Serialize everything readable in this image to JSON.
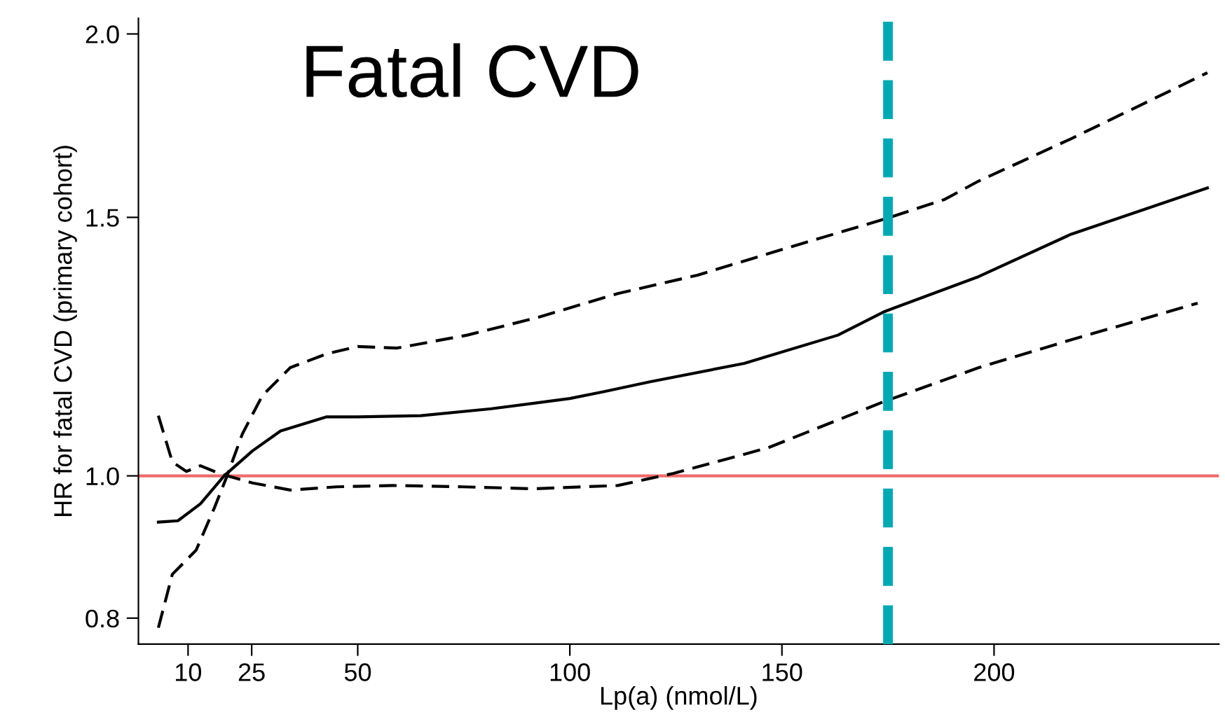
{
  "chart_data": {
    "type": "line",
    "title": "Fatal CVD",
    "xlabel": "Lp(a) (nmol/L)",
    "ylabel": "HR for fatal CVD (primary cohort)",
    "log": "y",
    "xlim": [
      -1.7,
      253
    ],
    "ylim": [
      0.768,
      2.05
    ],
    "xticks": [
      10,
      25,
      50,
      100,
      150,
      200
    ],
    "yticks": [
      0.8,
      {
        "value": 1.0,
        "label": "1.0"
      },
      1.5,
      {
        "value": 2.0,
        "label": "2.0"
      }
    ],
    "grid": false,
    "legend": false,
    "series": [
      {
        "color": "#000000",
        "line_style": "solid",
        "x": [
          3.0,
          7.6,
          12.9,
          18.5,
          25.2,
          31.8,
          42.7,
          50,
          64.9,
          81.5,
          100,
          107.9,
          118.9,
          141.1,
          163.2,
          174.2,
          196.4,
          218.2,
          250.3
        ],
        "values": [
          0.93,
          0.932,
          0.957,
          1.0,
          1.04,
          1.073,
          1.097,
          1.097,
          1.099,
          1.111,
          1.129,
          1.141,
          1.159,
          1.193,
          1.247,
          1.294,
          1.367,
          1.461,
          1.571
        ]
      },
      {
        "color": "#000000",
        "line_style": "dashed",
        "x": [
          3.0,
          6.3,
          9.6,
          12.9,
          16.2,
          19.2,
          25.2,
          34.1,
          45.0,
          58.3,
          74.8,
          91.4,
          111.3,
          124.5,
          146.7,
          174.2,
          196.4,
          218.2,
          248.0
        ],
        "values": [
          1.099,
          1.022,
          1.007,
          1.016,
          1.007,
          1.0,
          0.989,
          0.978,
          0.983,
          0.985,
          0.983,
          0.98,
          0.985,
          1.004,
          1.045,
          1.124,
          1.185,
          1.238,
          1.311
        ]
      },
      {
        "color": "#000000",
        "line_style": "dashed",
        "x": [
          3.0,
          6.3,
          11.9,
          16.2,
          19.2,
          22.8,
          27.5,
          34.1,
          42.7,
          50,
          59.3,
          75.8,
          92.4,
          111.3,
          130.1,
          152.0,
          174.2,
          188.4,
          196.4,
          218.2,
          250.3
        ],
        "values": [
          0.788,
          0.857,
          0.89,
          0.951,
          1.0,
          1.068,
          1.134,
          1.185,
          1.211,
          1.225,
          1.222,
          1.247,
          1.282,
          1.331,
          1.37,
          1.432,
          1.496,
          1.543,
          1.588,
          1.697,
          1.882
        ]
      }
    ],
    "ref_lines": [
      {
        "axis": "y",
        "value": 1.0,
        "color": "#f06a6a",
        "line_style": "solid"
      },
      {
        "axis": "x",
        "value": 175,
        "color": "#00aab4",
        "line_style": "dashed"
      }
    ]
  }
}
